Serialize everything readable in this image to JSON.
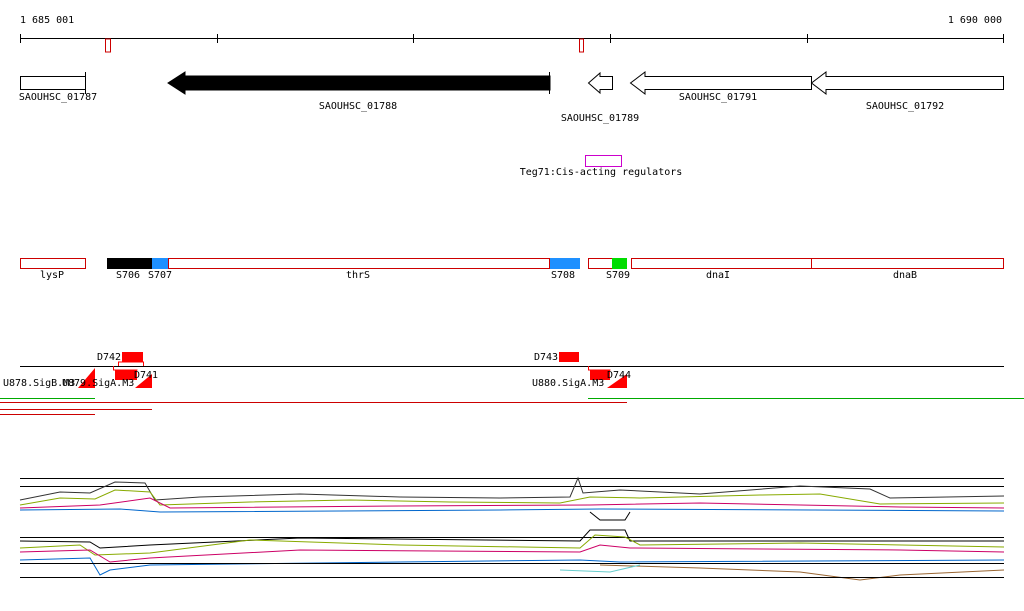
{
  "scale": {
    "start": "1 685 001",
    "end": "1 690 000"
  },
  "genes": [
    "SAOUHSC_01787",
    "SAOUHSC_01788",
    "SAOUHSC_01789",
    "SAOUHSC_01791",
    "SAOUHSC_01792"
  ],
  "regulators": [
    "Teg71:Cis-acting regulators"
  ],
  "segments": [
    "lysP",
    "S706",
    "S707",
    "thrS",
    "S708",
    "S709",
    "dnaI",
    "dnaB"
  ],
  "promoters": [
    "D742",
    "D743",
    "D741",
    "D744",
    "U878.SigB.M3",
    "U879.SigA.M3",
    "U880.SigA.M3"
  ]
}
